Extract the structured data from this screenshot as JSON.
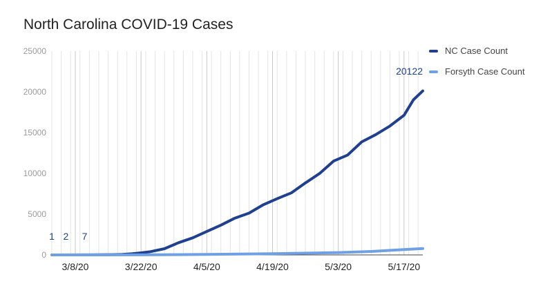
{
  "chart_data": {
    "type": "line",
    "title": "North Carolina COVID-19 Cases",
    "xlabel": "",
    "ylabel": "",
    "ylim": [
      0,
      25000
    ],
    "yticks": [
      "0",
      "5000",
      "10000",
      "15000",
      "20000",
      "25000"
    ],
    "x_range": [
      "3/3/20",
      "5/21/20"
    ],
    "xticks": [
      "3/8/20",
      "3/22/20",
      "4/5/20",
      "4/19/20",
      "5/3/20",
      "5/17/20"
    ],
    "grid": "vertical",
    "legend_position": "right",
    "series": [
      {
        "name": "NC Case Count",
        "color": "#1f3f8f",
        "x": [
          "3/3/20",
          "3/10/20",
          "3/13/20",
          "3/16/20",
          "3/18/20",
          "3/20/20",
          "3/22/20",
          "3/24/20",
          "3/27/20",
          "3/30/20",
          "4/2/20",
          "4/5/20",
          "4/8/20",
          "4/11/20",
          "4/14/20",
          "4/17/20",
          "4/20/20",
          "4/23/20",
          "4/26/20",
          "4/29/20",
          "5/2/20",
          "5/5/20",
          "5/8/20",
          "5/11/20",
          "5/14/20",
          "5/17/20",
          "5/19/20",
          "5/21/20"
        ],
        "values": [
          1,
          7,
          17,
          33,
          64,
          137,
          255,
          398,
          763,
          1498,
          2093,
          2870,
          3651,
          4520,
          5123,
          6140,
          6895,
          7608,
          8830,
          9980,
          11509,
          12256,
          13868,
          14764,
          15816,
          17129,
          19023,
          20122
        ]
      },
      {
        "name": "Forsyth Case Count",
        "color": "#6fa0e6",
        "x": [
          "3/3/20",
          "3/22/20",
          "4/5/20",
          "4/19/20",
          "5/3/20",
          "5/10/20",
          "5/17/20",
          "5/21/20"
        ],
        "values": [
          0,
          10,
          60,
          150,
          290,
          420,
          650,
          780
        ]
      }
    ],
    "data_labels": [
      {
        "x": "3/3/20",
        "text": "1"
      },
      {
        "x": "3/6/20",
        "text": "2"
      },
      {
        "x": "3/10/20",
        "text": "7"
      }
    ],
    "end_label": {
      "x": "5/21/20",
      "text": "20122"
    }
  }
}
